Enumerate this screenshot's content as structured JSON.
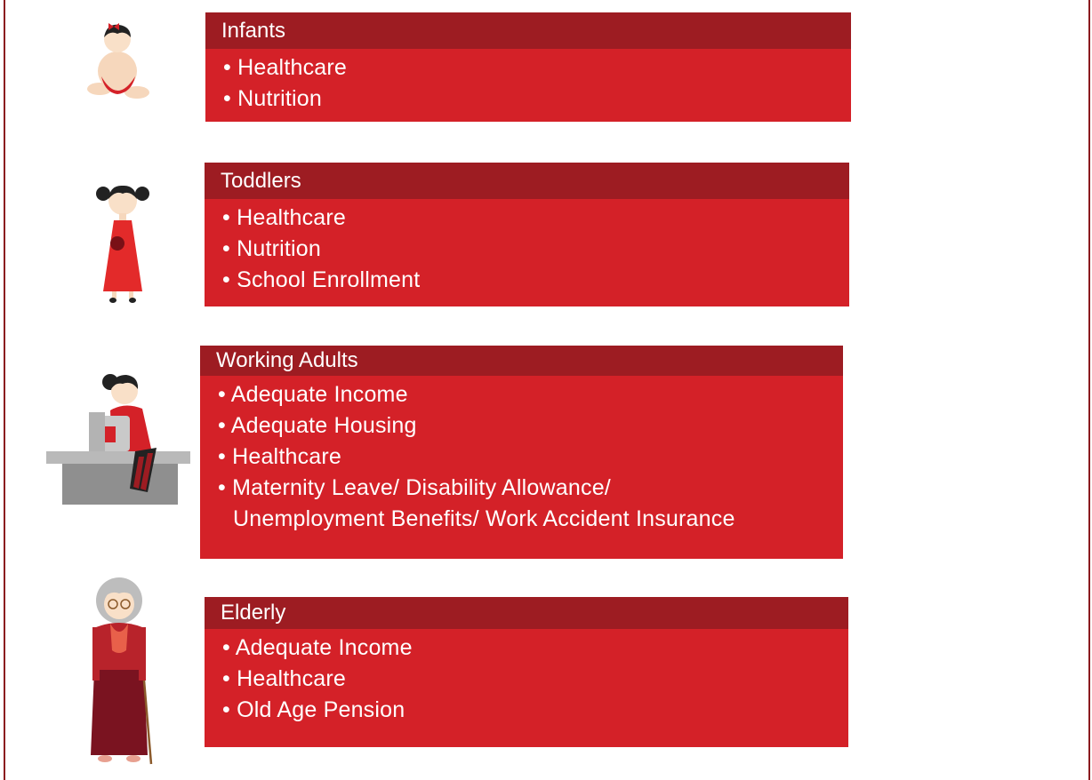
{
  "cards": [
    {
      "title": "Infants",
      "items": [
        "• Healthcare",
        "• Nutrition"
      ]
    },
    {
      "title": "Toddlers",
      "items": [
        "• Healthcare",
        "• Nutrition",
        "• School Enrollment"
      ]
    },
    {
      "title": "Working Adults",
      "items": [
        "• Adequate Income",
        "• Adequate Housing",
        "• Healthcare",
        "• Maternity Leave/ Disability Allowance/\nUnemployment Benefits/ Work Accident Insurance"
      ]
    },
    {
      "title": "Elderly",
      "items": [
        "• Adequate Income",
        "• Healthcare",
        "• Old Age Pension"
      ]
    }
  ]
}
